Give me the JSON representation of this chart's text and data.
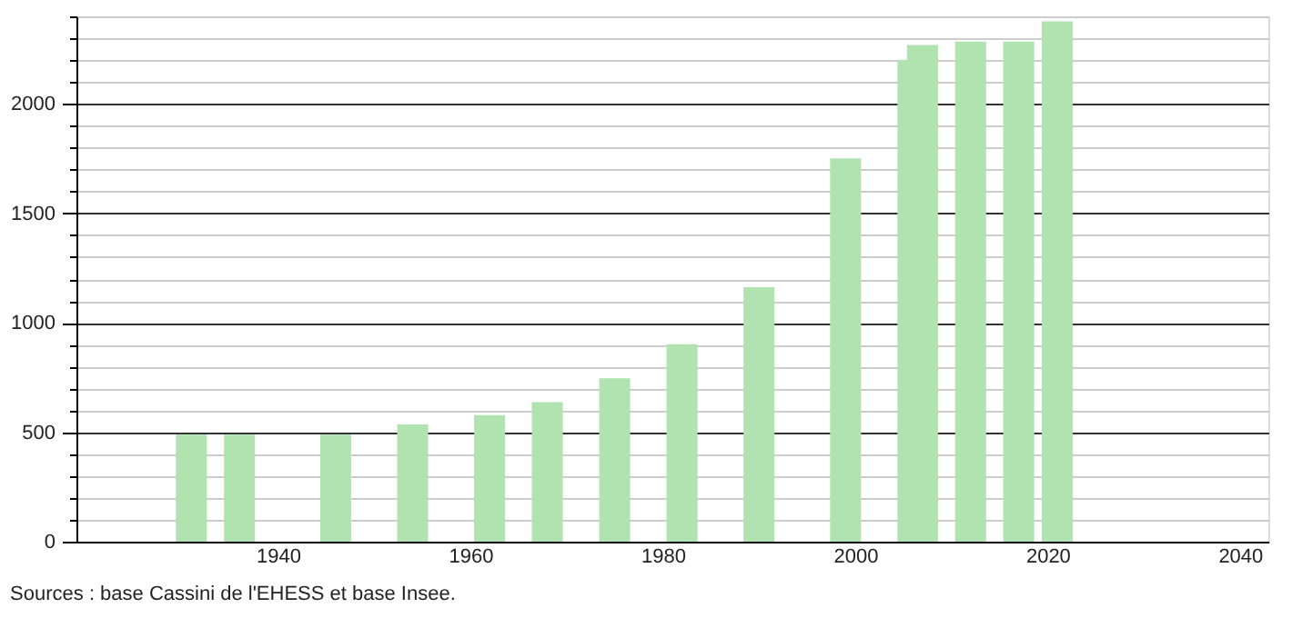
{
  "chart_data": {
    "type": "bar",
    "x": [
      1931,
      1936,
      1946,
      1954,
      1962,
      1968,
      1975,
      1982,
      1990,
      1999,
      2006,
      2007,
      2012,
      2017,
      2021
    ],
    "values": [
      489,
      489,
      489,
      536,
      578,
      637,
      746,
      902,
      1163,
      1751,
      2202,
      2269,
      2285,
      2285,
      2377
    ],
    "color": "#b0e3b0",
    "xlim": [
      1920,
      2042
    ],
    "xticks": [
      1940,
      1960,
      1980,
      2000,
      2020,
      2040
    ],
    "ylim": [
      0,
      2400
    ],
    "yticks": [
      0,
      {
        "value": 100,
        "label": null
      },
      {
        "value": 200,
        "label": null
      },
      {
        "value": 300,
        "label": null
      },
      {
        "value": 400,
        "label": null
      },
      500,
      {
        "value": 600,
        "label": null
      },
      {
        "value": 700,
        "label": null
      },
      {
        "value": 800,
        "label": null
      },
      {
        "value": 900,
        "label": null
      },
      1000,
      {
        "value": 1100,
        "label": null
      },
      {
        "value": 1200,
        "label": null
      },
      {
        "value": 1300,
        "label": null
      },
      {
        "value": 1400,
        "label": null
      },
      1500,
      {
        "value": 1600,
        "label": null
      },
      {
        "value": 1700,
        "label": null
      },
      {
        "value": 1800,
        "label": null
      },
      {
        "value": 1900,
        "label": null
      },
      2000,
      {
        "value": 2100,
        "label": null
      },
      {
        "value": 2200,
        "label": null
      },
      {
        "value": 2300,
        "label": null
      },
      {
        "value": 2400,
        "label": null
      }
    ],
    "grid": "y",
    "annotations": [
      "Sources : base Cassini de l'EHESS et base Insee."
    ]
  }
}
